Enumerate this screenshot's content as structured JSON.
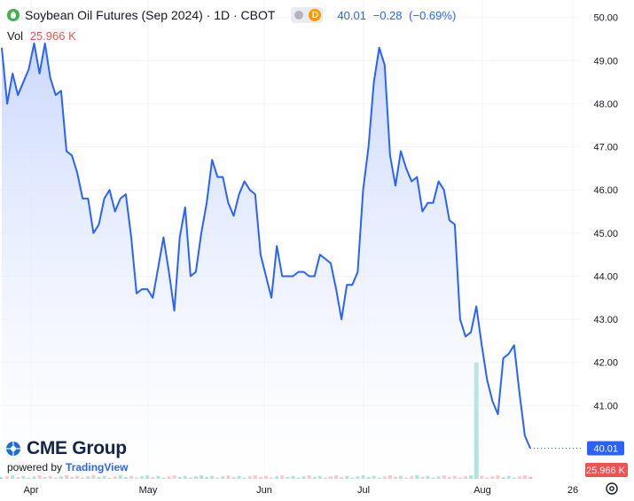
{
  "header": {
    "title": "Soybean Oil Futures (Sep 2024) · 1D · CBOT",
    "interval_badge": "D",
    "last": "40.01",
    "change": "−0.28",
    "change_pct": "(−0.69%)"
  },
  "volume": {
    "label": "Vol",
    "value": "25.966 K"
  },
  "branding": {
    "logo_text": "CME Group",
    "powered_by": "powered by",
    "provider": "TradingView"
  },
  "colors": {
    "line": "#2962ff",
    "area_top": "#c9d7ff",
    "area_bottom": "#ffffff",
    "last_price_label": "#2962ff",
    "volume_label": "#ef5350",
    "volume_up": "#7ecfc8",
    "volume_down": "#f5a3a3"
  },
  "chart_data": {
    "type": "area",
    "y_ticks": [
      "50.00",
      "49.00",
      "48.00",
      "47.00",
      "46.00",
      "45.00",
      "44.00",
      "43.00",
      "42.00",
      "41.00"
    ],
    "ylim": [
      39.3,
      50.2
    ],
    "x_ticks": [
      "Apr",
      "May",
      "Jun",
      "Jul",
      "Aug",
      "26"
    ],
    "last_value_label": "40.01",
    "volume_value_label": "25.966 K",
    "grid": true,
    "series": [
      {
        "values": [
          49.3,
          48.0,
          48.7,
          48.2,
          48.5,
          48.8,
          49.4,
          48.7,
          49.4,
          48.6,
          48.2,
          48.3,
          46.9,
          46.8,
          46.4,
          45.8,
          45.8,
          45.0,
          45.2,
          45.8,
          46.0,
          45.5,
          45.8,
          45.9,
          44.9,
          43.6,
          43.7,
          43.7,
          43.5,
          44.2,
          44.9,
          44.1,
          43.2,
          44.9,
          45.6,
          44.0,
          44.1,
          45.0,
          45.7,
          46.7,
          46.3,
          46.3,
          45.7,
          45.4,
          45.9,
          46.2,
          46.0,
          45.9,
          44.5,
          44.0,
          43.5,
          44.7,
          44.0,
          44.0,
          44.0,
          44.1,
          44.1,
          44.0,
          44.0,
          44.5,
          44.4,
          44.3,
          43.7,
          43.0,
          43.8,
          43.8,
          44.1,
          46.0,
          47.0,
          48.5,
          49.3,
          48.9,
          46.8,
          46.1,
          46.9,
          46.5,
          46.2,
          46.3,
          45.5,
          45.7,
          45.7,
          46.2,
          46.0,
          45.3,
          45.2,
          43.0,
          42.6,
          42.7,
          43.3,
          42.4,
          41.6,
          41.1,
          40.8,
          42.1,
          42.2,
          42.4,
          41.3,
          40.3,
          40.01
        ],
        "volume_spike_index": 88,
        "volume_spike_value": 42.0
      }
    ]
  }
}
